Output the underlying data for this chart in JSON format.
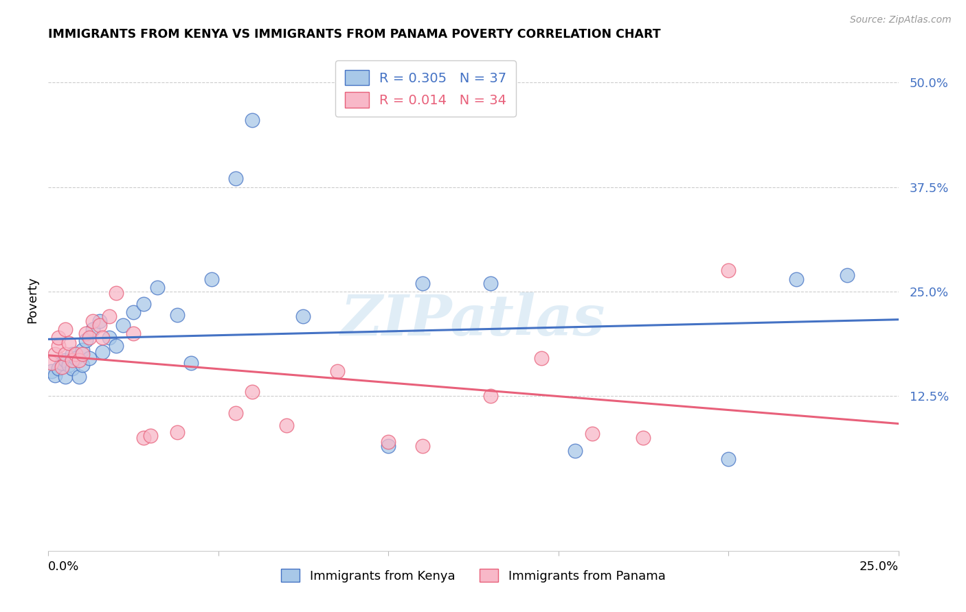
{
  "title": "IMMIGRANTS FROM KENYA VS IMMIGRANTS FROM PANAMA POVERTY CORRELATION CHART",
  "source": "Source: ZipAtlas.com",
  "ylabel": "Poverty",
  "ytick_labels": [
    "12.5%",
    "25.0%",
    "37.5%",
    "50.0%"
  ],
  "ytick_values": [
    0.125,
    0.25,
    0.375,
    0.5
  ],
  "xlim": [
    0.0,
    0.25
  ],
  "ylim": [
    -0.06,
    0.54
  ],
  "kenya_color": "#a8c8e8",
  "panama_color": "#f8b8c8",
  "kenya_line_color": "#4472c4",
  "panama_line_color": "#e8607a",
  "watermark_text": "ZIPatlas",
  "kenya_R": "0.305",
  "kenya_N": "37",
  "panama_R": "0.014",
  "panama_N": "34",
  "kenya_x": [
    0.001,
    0.002,
    0.003,
    0.004,
    0.005,
    0.005,
    0.006,
    0.007,
    0.007,
    0.008,
    0.009,
    0.01,
    0.01,
    0.011,
    0.012,
    0.013,
    0.015,
    0.016,
    0.018,
    0.02,
    0.022,
    0.025,
    0.028,
    0.032,
    0.038,
    0.042,
    0.048,
    0.055,
    0.06,
    0.075,
    0.1,
    0.11,
    0.13,
    0.155,
    0.2,
    0.22,
    0.235
  ],
  "kenya_y": [
    0.155,
    0.15,
    0.158,
    0.165,
    0.148,
    0.168,
    0.162,
    0.158,
    0.175,
    0.17,
    0.148,
    0.18,
    0.162,
    0.192,
    0.17,
    0.205,
    0.215,
    0.178,
    0.195,
    0.185,
    0.21,
    0.225,
    0.235,
    0.255,
    0.222,
    0.165,
    0.265,
    0.385,
    0.455,
    0.22,
    0.065,
    0.26,
    0.26,
    0.06,
    0.05,
    0.265,
    0.27
  ],
  "panama_x": [
    0.001,
    0.002,
    0.003,
    0.003,
    0.004,
    0.005,
    0.005,
    0.006,
    0.007,
    0.008,
    0.009,
    0.01,
    0.011,
    0.012,
    0.013,
    0.015,
    0.016,
    0.018,
    0.02,
    0.025,
    0.028,
    0.03,
    0.038,
    0.055,
    0.06,
    0.07,
    0.085,
    0.1,
    0.11,
    0.13,
    0.145,
    0.16,
    0.175,
    0.2
  ],
  "panama_y": [
    0.165,
    0.175,
    0.185,
    0.195,
    0.16,
    0.175,
    0.205,
    0.188,
    0.168,
    0.175,
    0.168,
    0.175,
    0.2,
    0.195,
    0.215,
    0.21,
    0.195,
    0.22,
    0.248,
    0.2,
    0.075,
    0.078,
    0.082,
    0.105,
    0.13,
    0.09,
    0.155,
    0.07,
    0.065,
    0.125,
    0.17,
    0.08,
    0.075,
    0.275
  ]
}
